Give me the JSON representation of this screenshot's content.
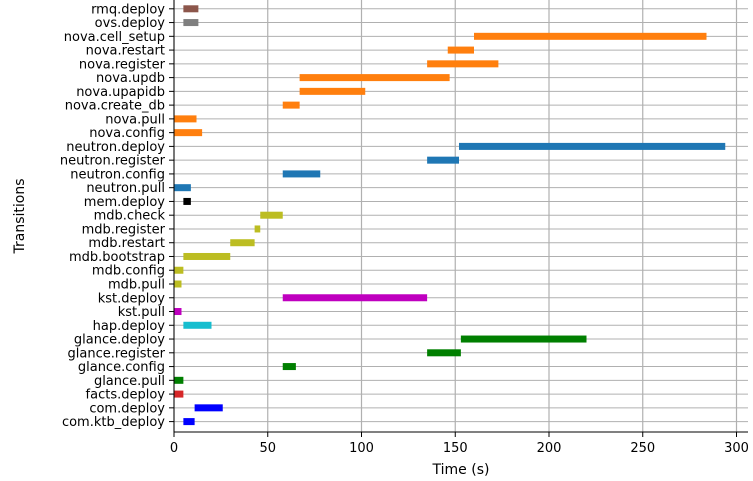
{
  "chart_data": {
    "type": "bar",
    "orientation": "horizontal-gantt",
    "xlabel": "Time (s)",
    "ylabel": "Transitions",
    "xlim": [
      0,
      300
    ],
    "xticks": [
      0,
      50,
      100,
      150,
      200,
      250,
      300
    ],
    "grid": true,
    "tasks": [
      {
        "name": "rmq.deploy",
        "start": 5,
        "end": 13,
        "color": "#8c564b"
      },
      {
        "name": "ovs.deploy",
        "start": 5,
        "end": 13,
        "color": "#7f7f7f"
      },
      {
        "name": "nova.cell_setup",
        "start": 160,
        "end": 284,
        "color": "#ff7f0e"
      },
      {
        "name": "nova.restart",
        "start": 146,
        "end": 160,
        "color": "#ff7f0e"
      },
      {
        "name": "nova.register",
        "start": 135,
        "end": 173,
        "color": "#ff7f0e"
      },
      {
        "name": "nova.updb",
        "start": 67,
        "end": 147,
        "color": "#ff7f0e"
      },
      {
        "name": "nova.upapidb",
        "start": 67,
        "end": 102,
        "color": "#ff7f0e"
      },
      {
        "name": "nova.create_db",
        "start": 58,
        "end": 67,
        "color": "#ff7f0e"
      },
      {
        "name": "nova.pull",
        "start": 0,
        "end": 12,
        "color": "#ff7f0e"
      },
      {
        "name": "nova.config",
        "start": 0,
        "end": 15,
        "color": "#ff7f0e"
      },
      {
        "name": "neutron.deploy",
        "start": 152,
        "end": 294,
        "color": "#1f77b4"
      },
      {
        "name": "neutron.register",
        "start": 135,
        "end": 152,
        "color": "#1f77b4"
      },
      {
        "name": "neutron.config",
        "start": 58,
        "end": 78,
        "color": "#1f77b4"
      },
      {
        "name": "neutron.pull",
        "start": 0,
        "end": 9,
        "color": "#1f77b4"
      },
      {
        "name": "mem.deploy",
        "start": 5,
        "end": 9,
        "color": "#000000"
      },
      {
        "name": "mdb.check",
        "start": 46,
        "end": 58,
        "color": "#bcbd22"
      },
      {
        "name": "mdb.register",
        "start": 43,
        "end": 46,
        "color": "#bcbd22"
      },
      {
        "name": "mdb.restart",
        "start": 30,
        "end": 43,
        "color": "#bcbd22"
      },
      {
        "name": "mdb.bootstrap",
        "start": 5,
        "end": 30,
        "color": "#bcbd22"
      },
      {
        "name": "mdb.config",
        "start": 0,
        "end": 5,
        "color": "#bcbd22"
      },
      {
        "name": "mdb.pull",
        "start": 0,
        "end": 4,
        "color": "#bcbd22"
      },
      {
        "name": "kst.deploy",
        "start": 58,
        "end": 135,
        "color": "#bf00bf"
      },
      {
        "name": "kst.pull",
        "start": 0,
        "end": 4,
        "color": "#bf00bf"
      },
      {
        "name": "hap.deploy",
        "start": 5,
        "end": 20,
        "color": "#17becf"
      },
      {
        "name": "glance.deploy",
        "start": 153,
        "end": 220,
        "color": "#007f00"
      },
      {
        "name": "glance.register",
        "start": 135,
        "end": 153,
        "color": "#007f00"
      },
      {
        "name": "glance.config",
        "start": 58,
        "end": 65,
        "color": "#007f00"
      },
      {
        "name": "glance.pull",
        "start": 0,
        "end": 5,
        "color": "#007f00"
      },
      {
        "name": "facts.deploy",
        "start": 0,
        "end": 5,
        "color": "#d62728"
      },
      {
        "name": "com.deploy",
        "start": 11,
        "end": 26,
        "color": "#0000ff"
      },
      {
        "name": "com.ktb_deploy",
        "start": 5,
        "end": 11,
        "color": "#0000ff"
      }
    ]
  }
}
